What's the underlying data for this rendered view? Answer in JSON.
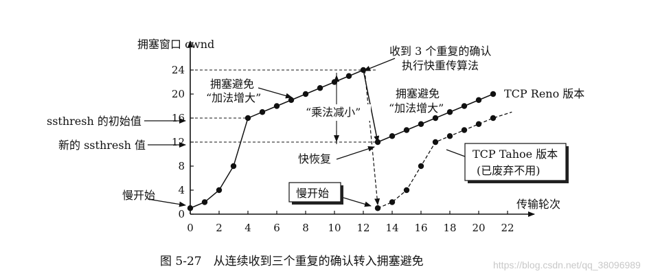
{
  "figure": {
    "caption": "图 5-27　从连续收到三个重复的确认转入拥塞避免",
    "watermark": "https://blog.csdn.net/qq_38096989"
  },
  "chart_data": {
    "type": "line",
    "ylabel": "拥塞窗口 cwnd",
    "xlabel": "传输轮次",
    "xlim": [
      0,
      22
    ],
    "ylim": [
      0,
      24
    ],
    "x_ticks": [
      0,
      2,
      4,
      6,
      8,
      10,
      12,
      14,
      16,
      18,
      20,
      22
    ],
    "y_ticks": [
      0,
      4,
      8,
      12,
      16,
      20,
      24
    ],
    "series": [
      {
        "name": "TCP Reno 版本",
        "style": "solid",
        "points": [
          [
            0,
            1
          ],
          [
            1,
            2
          ],
          [
            2,
            4
          ],
          [
            3,
            8
          ],
          [
            4,
            16
          ],
          [
            5,
            17
          ],
          [
            6,
            18
          ],
          [
            7,
            19
          ],
          [
            8,
            20
          ],
          [
            9,
            21
          ],
          [
            10,
            22
          ],
          [
            11,
            23
          ],
          [
            12,
            24
          ],
          [
            13,
            12
          ],
          [
            14,
            13
          ],
          [
            15,
            14
          ],
          [
            16,
            15
          ],
          [
            17,
            16
          ],
          [
            18,
            17
          ],
          [
            19,
            18
          ],
          [
            20,
            19
          ],
          [
            21,
            20
          ]
        ]
      },
      {
        "name": "TCP Tahoe 版本\n(已废弃不用)",
        "style": "dashed",
        "points": [
          [
            12,
            24
          ],
          [
            13,
            1
          ],
          [
            14,
            2
          ],
          [
            15,
            4
          ],
          [
            16,
            8
          ],
          [
            17,
            12
          ],
          [
            18,
            13
          ],
          [
            19,
            14
          ],
          [
            20,
            15
          ],
          [
            21,
            16
          ]
        ],
        "tail_to": [
          22.3,
          17
        ]
      }
    ],
    "reference_lines": [
      {
        "y": 24,
        "label": ""
      },
      {
        "y": 16,
        "label": "ssthresh 的初始值"
      },
      {
        "y": 12,
        "label": "新的 ssthresh 值"
      }
    ],
    "annotations": {
      "slow_start_left": "慢开始",
      "slow_start_boxed": "慢开始",
      "ca_left_1": "拥塞避免",
      "ca_left_2": "“加法增大”",
      "ca_right_1": "拥塞避免",
      "ca_right_2": "“加法增大”",
      "md": "“乘法减小”",
      "dup_ack_1": "收到 3 个重复的确认",
      "dup_ack_2": "执行快重传算法",
      "fast_recovery": "快恢复",
      "reno_label": "TCP Reno 版本",
      "tahoe_label_1": "TCP Tahoe 版本",
      "tahoe_label_2": "(已废弃不用)"
    }
  }
}
